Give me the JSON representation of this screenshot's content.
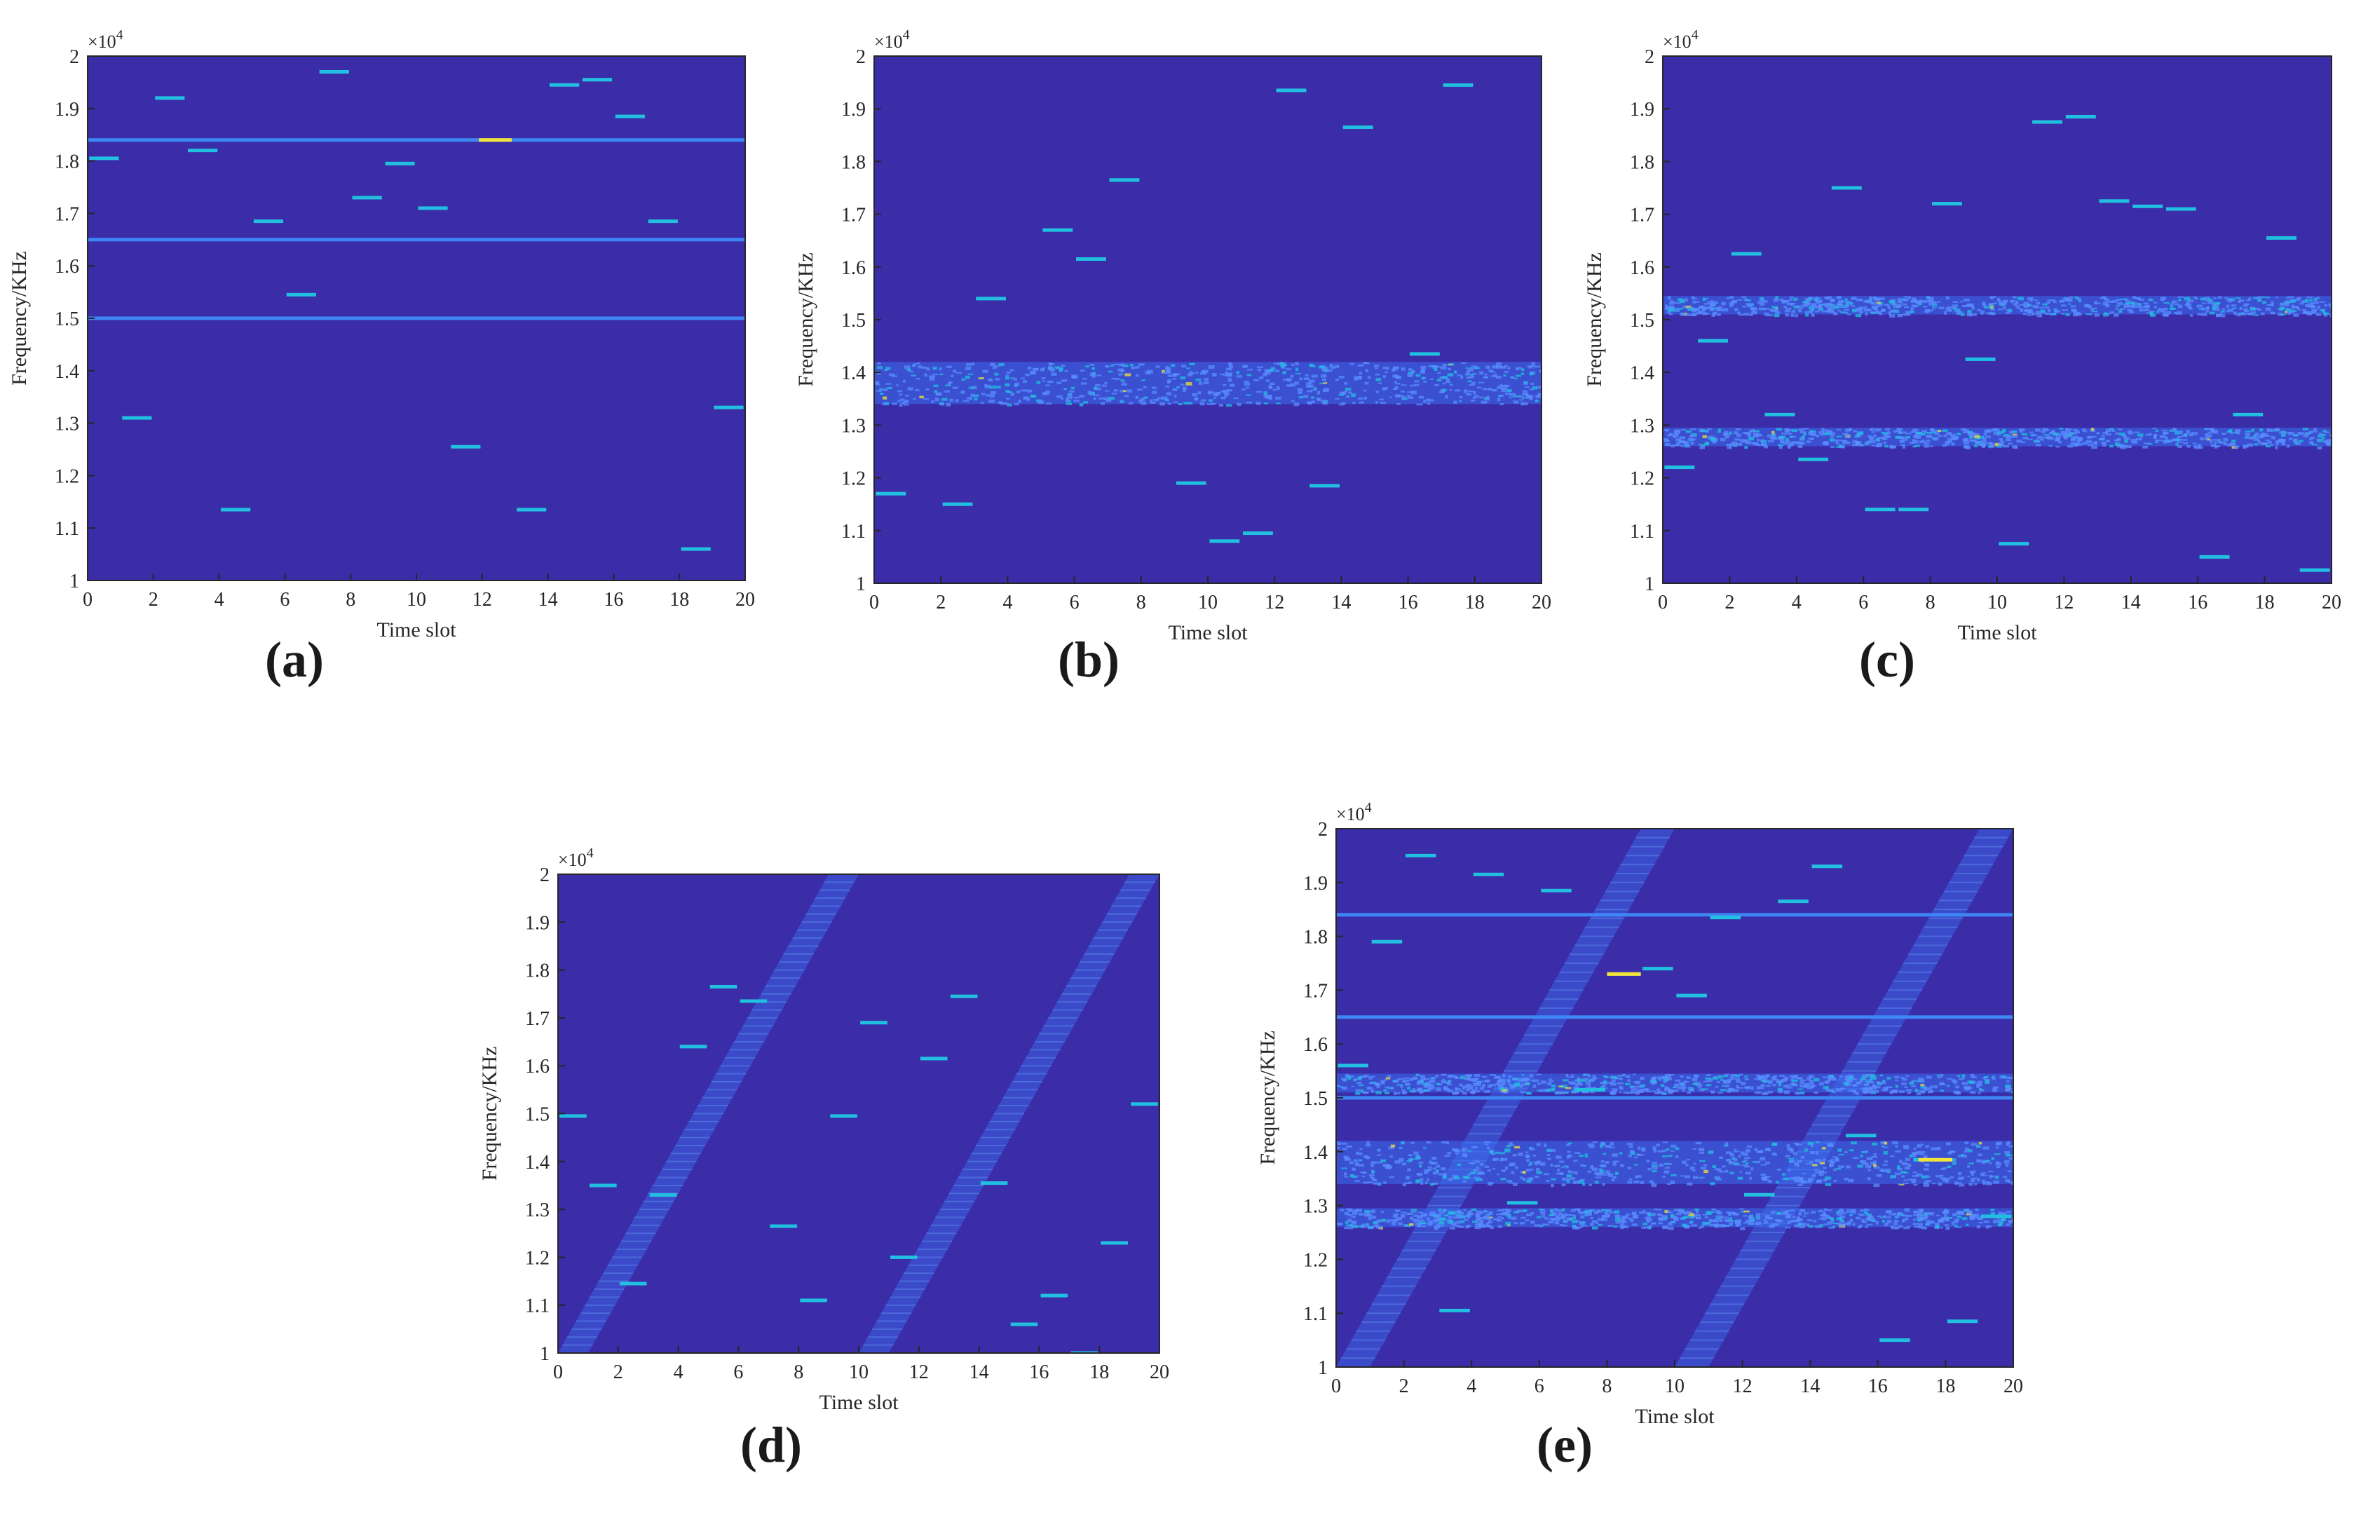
{
  "colors": {
    "background": "#3b2ca8",
    "band": "#3a6ff0",
    "burst": "#22c0e0",
    "hot": "#f2e23a",
    "grid_text": "#262626"
  },
  "chart_data": [
    {
      "id": "a",
      "panel_label": "(a)",
      "type": "heatmap",
      "xlabel": "Time slot",
      "ylabel": "Frequency/KHz",
      "y_exponent": "×10",
      "y_exponent_power": "4",
      "xlim": [
        0,
        20
      ],
      "ylim": [
        1,
        2
      ],
      "x_ticks": [
        "0",
        "2",
        "4",
        "6",
        "8",
        "10",
        "12",
        "14",
        "16",
        "18",
        "20"
      ],
      "y_ticks": [
        "1",
        "1.1",
        "1.2",
        "1.3",
        "1.4",
        "1.5",
        "1.6",
        "1.7",
        "1.8",
        "1.9",
        "2"
      ],
      "fixed_tones": [
        1.84,
        1.65,
        1.5
      ],
      "hot_spots": [
        {
          "x": 12.4,
          "y": 1.84
        }
      ],
      "noise_bands": [],
      "sweeps": [],
      "bursts": [
        {
          "x": 0.5,
          "y": 1.805
        },
        {
          "x": 1.5,
          "y": 1.31
        },
        {
          "x": 2.5,
          "y": 1.92
        },
        {
          "x": 3.5,
          "y": 1.82
        },
        {
          "x": 4.5,
          "y": 1.135
        },
        {
          "x": 5.5,
          "y": 1.685
        },
        {
          "x": 6.5,
          "y": 1.545
        },
        {
          "x": 7.5,
          "y": 1.97
        },
        {
          "x": 8.5,
          "y": 1.73
        },
        {
          "x": 9.5,
          "y": 1.795
        },
        {
          "x": 10.5,
          "y": 1.71
        },
        {
          "x": 11.5,
          "y": 1.255
        },
        {
          "x": 13.5,
          "y": 1.135
        },
        {
          "x": 14.5,
          "y": 1.945
        },
        {
          "x": 15.5,
          "y": 1.955
        },
        {
          "x": 16.5,
          "y": 1.885
        },
        {
          "x": 17.5,
          "y": 1.685
        },
        {
          "x": 18.5,
          "y": 1.06
        },
        {
          "x": 19.5,
          "y": 1.33
        }
      ]
    },
    {
      "id": "b",
      "panel_label": "(b)",
      "type": "heatmap",
      "xlabel": "Time slot",
      "ylabel": "Frequency/KHz",
      "y_exponent": "×10",
      "y_exponent_power": "4",
      "xlim": [
        0,
        20
      ],
      "ylim": [
        1,
        2
      ],
      "x_ticks": [
        "0",
        "2",
        "4",
        "6",
        "8",
        "10",
        "12",
        "14",
        "16",
        "18",
        "20"
      ],
      "y_ticks": [
        "1",
        "1.1",
        "1.2",
        "1.3",
        "1.4",
        "1.5",
        "1.6",
        "1.7",
        "1.8",
        "1.9",
        "2"
      ],
      "fixed_tones": [],
      "hot_spots": [],
      "noise_bands": [
        [
          1.34,
          1.42
        ]
      ],
      "sweeps": [],
      "bursts": [
        {
          "x": 0.5,
          "y": 1.17
        },
        {
          "x": 2.5,
          "y": 1.15
        },
        {
          "x": 3.5,
          "y": 1.54
        },
        {
          "x": 5.5,
          "y": 1.67
        },
        {
          "x": 6.5,
          "y": 1.615
        },
        {
          "x": 7.5,
          "y": 1.765
        },
        {
          "x": 9.5,
          "y": 1.19
        },
        {
          "x": 10.5,
          "y": 1.08
        },
        {
          "x": 11.5,
          "y": 1.095
        },
        {
          "x": 12.5,
          "y": 1.935
        },
        {
          "x": 13.5,
          "y": 1.185
        },
        {
          "x": 14.5,
          "y": 1.865
        },
        {
          "x": 16.5,
          "y": 1.435
        },
        {
          "x": 17.5,
          "y": 1.945
        }
      ]
    },
    {
      "id": "c",
      "panel_label": "(c)",
      "type": "heatmap",
      "xlabel": "Time slot",
      "ylabel": "Frequency/KHz",
      "y_exponent": "×10",
      "y_exponent_power": "4",
      "xlim": [
        0,
        20
      ],
      "ylim": [
        1,
        2
      ],
      "x_ticks": [
        "0",
        "2",
        "4",
        "6",
        "8",
        "10",
        "12",
        "14",
        "16",
        "18",
        "20"
      ],
      "y_ticks": [
        "1",
        "1.1",
        "1.2",
        "1.3",
        "1.4",
        "1.5",
        "1.6",
        "1.7",
        "1.8",
        "1.9",
        "2"
      ],
      "fixed_tones": [],
      "hot_spots": [],
      "noise_bands": [
        [
          1.51,
          1.545
        ],
        [
          1.26,
          1.295
        ]
      ],
      "sweeps": [],
      "bursts": [
        {
          "x": 0.5,
          "y": 1.22
        },
        {
          "x": 1.5,
          "y": 1.46
        },
        {
          "x": 2.5,
          "y": 1.625
        },
        {
          "x": 3.5,
          "y": 1.32
        },
        {
          "x": 4.5,
          "y": 1.235
        },
        {
          "x": 5.5,
          "y": 1.75
        },
        {
          "x": 6.5,
          "y": 1.14
        },
        {
          "x": 7.5,
          "y": 1.14
        },
        {
          "x": 8.5,
          "y": 1.72
        },
        {
          "x": 9.5,
          "y": 1.425
        },
        {
          "x": 10.5,
          "y": 1.075
        },
        {
          "x": 11.5,
          "y": 1.875
        },
        {
          "x": 12.5,
          "y": 1.885
        },
        {
          "x": 13.5,
          "y": 1.725
        },
        {
          "x": 14.5,
          "y": 1.715
        },
        {
          "x": 15.5,
          "y": 1.71
        },
        {
          "x": 16.5,
          "y": 1.05
        },
        {
          "x": 17.5,
          "y": 1.32
        },
        {
          "x": 18.5,
          "y": 1.655
        },
        {
          "x": 19.5,
          "y": 1.025
        }
      ]
    },
    {
      "id": "d",
      "panel_label": "(d)",
      "type": "heatmap",
      "xlabel": "Time slot",
      "ylabel": "Frequency/KHz",
      "y_exponent": "×10",
      "y_exponent_power": "4",
      "xlim": [
        0,
        20
      ],
      "ylim": [
        1,
        2
      ],
      "x_ticks": [
        "0",
        "2",
        "4",
        "6",
        "8",
        "10",
        "12",
        "14",
        "16",
        "18",
        "20"
      ],
      "y_ticks": [
        "1",
        "1.1",
        "1.2",
        "1.3",
        "1.4",
        "1.5",
        "1.6",
        "1.7",
        "1.8",
        "1.9",
        "2"
      ],
      "fixed_tones": [],
      "hot_spots": [],
      "noise_bands": [],
      "sweeps": [
        {
          "x_start": 0.0,
          "x_end": 10.0,
          "width": 1.0
        },
        {
          "x_start": 10.0,
          "x_end": 20.0,
          "width": 1.0
        }
      ],
      "bursts": [
        {
          "x": 0.5,
          "y": 1.495
        },
        {
          "x": 1.5,
          "y": 1.35
        },
        {
          "x": 2.5,
          "y": 1.145
        },
        {
          "x": 3.5,
          "y": 1.33
        },
        {
          "x": 4.5,
          "y": 1.64
        },
        {
          "x": 5.5,
          "y": 1.765
        },
        {
          "x": 6.5,
          "y": 1.735
        },
        {
          "x": 7.5,
          "y": 1.265
        },
        {
          "x": 8.5,
          "y": 1.11
        },
        {
          "x": 9.5,
          "y": 1.495
        },
        {
          "x": 10.5,
          "y": 1.69
        },
        {
          "x": 11.5,
          "y": 1.2
        },
        {
          "x": 12.5,
          "y": 1.615
        },
        {
          "x": 13.5,
          "y": 1.745
        },
        {
          "x": 14.5,
          "y": 1.355
        },
        {
          "x": 15.5,
          "y": 1.06
        },
        {
          "x": 16.5,
          "y": 1.12
        },
        {
          "x": 17.5,
          "y": 1.0
        },
        {
          "x": 18.5,
          "y": 1.23
        },
        {
          "x": 19.5,
          "y": 1.52
        }
      ]
    },
    {
      "id": "e",
      "panel_label": "(e)",
      "type": "heatmap",
      "xlabel": "Time slot",
      "ylabel": "Frequency/KHz",
      "y_exponent": "×10",
      "y_exponent_power": "4",
      "xlim": [
        0,
        20
      ],
      "ylim": [
        1,
        2
      ],
      "x_ticks": [
        "0",
        "2",
        "4",
        "6",
        "8",
        "10",
        "12",
        "14",
        "16",
        "18",
        "20"
      ],
      "y_ticks": [
        "1",
        "1.1",
        "1.2",
        "1.3",
        "1.4",
        "1.5",
        "1.6",
        "1.7",
        "1.8",
        "1.9",
        "2"
      ],
      "fixed_tones": [
        1.84,
        1.65,
        1.5
      ],
      "hot_spots": [
        {
          "x": 8.5,
          "y": 1.73
        },
        {
          "x": 17.7,
          "y": 1.385
        }
      ],
      "noise_bands": [
        [
          1.34,
          1.42
        ],
        [
          1.51,
          1.545
        ],
        [
          1.26,
          1.295
        ]
      ],
      "sweeps": [
        {
          "x_start": 0.0,
          "x_end": 10.0,
          "width": 1.0
        },
        {
          "x_start": 10.0,
          "x_end": 20.0,
          "width": 1.0
        }
      ],
      "bursts": [
        {
          "x": 0.5,
          "y": 1.56
        },
        {
          "x": 1.5,
          "y": 1.79
        },
        {
          "x": 2.5,
          "y": 1.95
        },
        {
          "x": 3.5,
          "y": 1.105
        },
        {
          "x": 4.5,
          "y": 1.915
        },
        {
          "x": 5.5,
          "y": 1.305
        },
        {
          "x": 6.5,
          "y": 1.885
        },
        {
          "x": 7.5,
          "y": 1.515
        },
        {
          "x": 8.5,
          "y": 1.73
        },
        {
          "x": 9.5,
          "y": 1.74
        },
        {
          "x": 10.5,
          "y": 1.69
        },
        {
          "x": 11.5,
          "y": 1.835
        },
        {
          "x": 12.5,
          "y": 1.32
        },
        {
          "x": 13.5,
          "y": 1.865
        },
        {
          "x": 14.5,
          "y": 1.93
        },
        {
          "x": 15.5,
          "y": 1.43
        },
        {
          "x": 16.5,
          "y": 1.05
        },
        {
          "x": 17.5,
          "y": 1.385
        },
        {
          "x": 18.5,
          "y": 1.085
        },
        {
          "x": 19.5,
          "y": 1.28
        }
      ]
    }
  ]
}
